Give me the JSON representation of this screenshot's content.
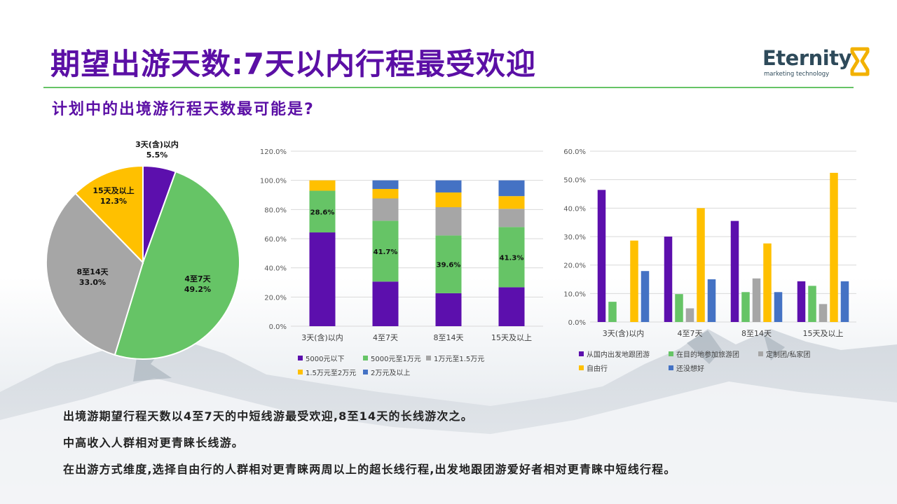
{
  "title": "期望出游天数:7天以内行程最受欢迎",
  "subtitle": "计划中的出境游行程天数最可能是?",
  "logo": {
    "name": "Eternity",
    "tagline": "marketing technology"
  },
  "colors": {
    "title": "#5b0fa5",
    "rule": "#66c466",
    "purple": "#5c0fad",
    "green": "#66c466",
    "gray": "#a6a6a6",
    "yellow": "#ffc000",
    "blue": "#4472c4"
  },
  "chart_data": [
    {
      "type": "pie",
      "slices": [
        {
          "name": "3天(含)以内",
          "value": 5.5,
          "label": "5.5%"
        },
        {
          "name": "4至7天",
          "value": 49.2,
          "label": "49.2%"
        },
        {
          "name": "8至14天",
          "value": 33.0,
          "label": "33.0%"
        },
        {
          "name": "15天及以上",
          "value": 12.3,
          "label": "12.3%"
        }
      ]
    },
    {
      "type": "bar",
      "stacked": true,
      "categories": [
        "3天(含)以内",
        "4至7天",
        "8至14天",
        "15天及以上"
      ],
      "ylim": [
        0,
        120
      ],
      "yticks": [
        "0.0%",
        "20.0%",
        "40.0%",
        "60.0%",
        "80.0%",
        "100.0%",
        "120.0%"
      ],
      "series": [
        {
          "name": "5000元以下",
          "values": [
            64.3,
            30.6,
            22.6,
            26.7
          ]
        },
        {
          "name": "5000元至1万元",
          "values": [
            28.6,
            41.7,
            39.6,
            41.3
          ]
        },
        {
          "name": "1万元至1.5万元",
          "values": [
            0,
            15.3,
            19.4,
            12.5
          ]
        },
        {
          "name": "1.5万元至2万元",
          "values": [
            7.1,
            6.5,
            10.1,
            8.7
          ]
        },
        {
          "name": "2万元及以上",
          "values": [
            0,
            5.9,
            8.3,
            10.8
          ]
        }
      ],
      "data_labels": [
        "28.6%",
        "41.7%",
        "39.6%",
        "41.3%"
      ],
      "grid": true,
      "legend": "bottom"
    },
    {
      "type": "bar",
      "categories": [
        "3天(含)以内",
        "4至7天",
        "8至14天",
        "15天及以上"
      ],
      "ylim": [
        0,
        60
      ],
      "yticks": [
        "0.0%",
        "10.0%",
        "20.0%",
        "30.0%",
        "40.0%",
        "50.0%",
        "60.0%"
      ],
      "series": [
        {
          "name": "从国内出发地跟团游",
          "values": [
            46.4,
            30.0,
            35.5,
            14.3
          ]
        },
        {
          "name": "在目的地参加旅游团",
          "values": [
            7.1,
            9.8,
            10.5,
            12.7
          ]
        },
        {
          "name": "定制团/私家团",
          "values": [
            0,
            4.8,
            15.3,
            6.3
          ]
        },
        {
          "name": "自由行",
          "values": [
            28.6,
            40.0,
            27.6,
            52.4
          ]
        },
        {
          "name": "还没想好",
          "values": [
            17.9,
            15.0,
            10.5,
            14.3
          ]
        }
      ],
      "grid": true,
      "legend": "bottom"
    }
  ],
  "takeaways": [
    "出境游期望行程天数以4至7天的中短线游最受欢迎,8至14天的长线游次之。",
    "中高收入人群相对更青睐长线游。",
    "在出游方式维度,选择自由行的人群相对更青睐两周以上的超长线行程,出发地跟团游爱好者相对更青睐中短线行程。"
  ]
}
